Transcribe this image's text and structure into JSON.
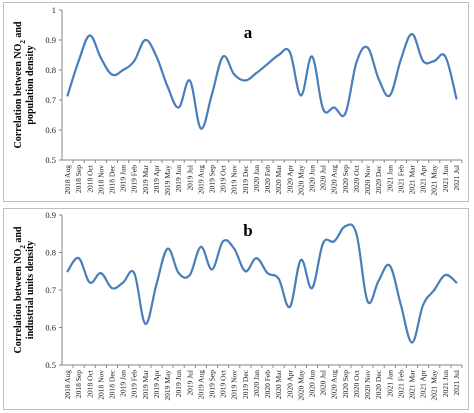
{
  "chart_data": [
    {
      "type": "line",
      "panel_label": "a",
      "ylabel_line1_pre": "Correlation between NO",
      "ylabel_line1_sub": "2",
      "ylabel_line1_post": " and",
      "ylabel_line2": "population density",
      "ylim": [
        0.5,
        1.0
      ],
      "yticks": [
        "0.5",
        "0.6",
        "0.7",
        "0.8",
        "0.9",
        "1"
      ],
      "grid": false,
      "color": "#4a7ebb",
      "categories": [
        "2018 Aug",
        "2018 Sep",
        "2018 Oct",
        "2018 Nov",
        "2018 Dec",
        "2019 Jan",
        "2019 Feb",
        "2019 Mar",
        "2019 Apr",
        "2019 May",
        "2019 Jun",
        "2019 Jul",
        "2019 Aug",
        "2019 Sep",
        "2019 Oct",
        "2019 Nov",
        "2019 Dec",
        "2020 Jan",
        "2020 Feb",
        "2020 Mar",
        "2020 Apr",
        "2020 May",
        "2020 Jun",
        "2020 Jul",
        "2020 Aug",
        "2020 Sep",
        "2020 Oct",
        "2020 Nov",
        "2020 Dec",
        "2021 Jan",
        "2021 Feb",
        "2021 Mar",
        "2021 Apr",
        "2021 May",
        "2021 Jun",
        "2021 Jul"
      ],
      "values": [
        0.715,
        0.83,
        0.915,
        0.84,
        0.785,
        0.8,
        0.83,
        0.9,
        0.845,
        0.745,
        0.675,
        0.765,
        0.605,
        0.72,
        0.845,
        0.785,
        0.765,
        0.79,
        0.82,
        0.85,
        0.86,
        0.715,
        0.845,
        0.67,
        0.675,
        0.655,
        0.825,
        0.875,
        0.77,
        0.715,
        0.835,
        0.92,
        0.83,
        0.83,
        0.845,
        0.705
      ]
    },
    {
      "type": "line",
      "panel_label": "b",
      "ylabel_line1_pre": "Correlation between NO",
      "ylabel_line1_sub": "2",
      "ylabel_line1_post": " and",
      "ylabel_line2": "industrial units density",
      "ylim": [
        0.5,
        0.9
      ],
      "yticks": [
        "0.5",
        "0.6",
        "0.7",
        "0.8",
        "0.9"
      ],
      "grid": false,
      "color": "#4a7ebb",
      "categories": [
        "2018 Aug",
        "2018 Sep",
        "2018 Oct",
        "2018 Nov",
        "2018 Dec",
        "2019 Jan",
        "2019 Feb",
        "2019 Mar",
        "2019 Apr",
        "2019 May",
        "2019 Jun",
        "2019 Jul",
        "2019 Aug",
        "2019 Sep",
        "2019 Oct",
        "2019 Nov",
        "2019 Dec",
        "2020 Jan",
        "2020 Feb",
        "2020 Mar",
        "2020 Apr",
        "2020 May",
        "2020 Jun",
        "2020 Jul",
        "2020 Aug",
        "2020 Sep",
        "2020 Oct",
        "2020 Nov",
        "2020 Dec",
        "2021 Jan",
        "2021 Feb",
        "2021 Mar",
        "2021 Apr",
        "2021 May",
        "2021 Jun",
        "2021 Jul"
      ],
      "values": [
        0.75,
        0.785,
        0.72,
        0.745,
        0.705,
        0.72,
        0.745,
        0.61,
        0.715,
        0.81,
        0.745,
        0.74,
        0.815,
        0.755,
        0.83,
        0.81,
        0.75,
        0.785,
        0.745,
        0.73,
        0.655,
        0.78,
        0.705,
        0.825,
        0.83,
        0.87,
        0.85,
        0.67,
        0.725,
        0.765,
        0.66,
        0.56,
        0.66,
        0.7,
        0.74,
        0.72
      ]
    }
  ]
}
